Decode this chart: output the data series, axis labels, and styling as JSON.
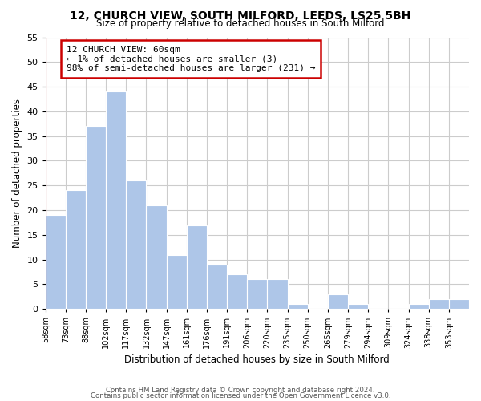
{
  "title1": "12, CHURCH VIEW, SOUTH MILFORD, LEEDS, LS25 5BH",
  "title2": "Size of property relative to detached houses in South Milford",
  "xlabel": "Distribution of detached houses by size in South Milford",
  "ylabel": "Number of detached properties",
  "bin_labels": [
    "58sqm",
    "73sqm",
    "88sqm",
    "102sqm",
    "117sqm",
    "132sqm",
    "147sqm",
    "161sqm",
    "176sqm",
    "191sqm",
    "206sqm",
    "220sqm",
    "235sqm",
    "250sqm",
    "265sqm",
    "279sqm",
    "294sqm",
    "309sqm",
    "324sqm",
    "338sqm",
    "353sqm"
  ],
  "counts": [
    19,
    24,
    37,
    44,
    26,
    21,
    11,
    17,
    9,
    7,
    6,
    6,
    1,
    0,
    3,
    1,
    0,
    0,
    1,
    2,
    2
  ],
  "bar_color": "#aec6e8",
  "bar_edge_color": "#ffffff",
  "highlight_color": "#cc0000",
  "annotation_box_text": "12 CHURCH VIEW: 60sqm\n← 1% of detached houses are smaller (3)\n98% of semi-detached houses are larger (231) →",
  "footer1": "Contains HM Land Registry data © Crown copyright and database right 2024.",
  "footer2": "Contains public sector information licensed under the Open Government Licence v3.0.",
  "ylim": [
    0,
    55
  ],
  "yticks": [
    0,
    5,
    10,
    15,
    20,
    25,
    30,
    35,
    40,
    45,
    50,
    55
  ],
  "bg_color": "#ffffff",
  "grid_color": "#cccccc"
}
